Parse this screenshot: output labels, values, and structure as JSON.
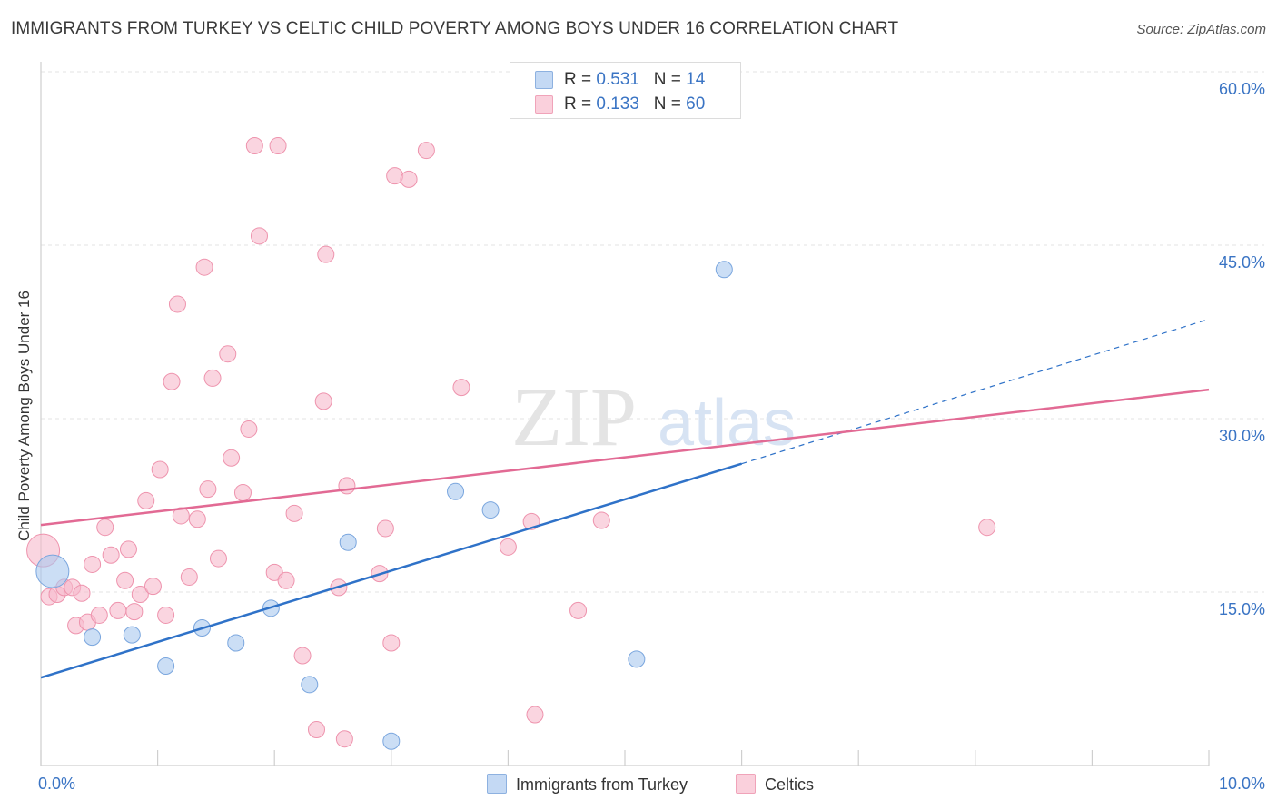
{
  "title": "IMMIGRANTS FROM TURKEY VS CELTIC CHILD POVERTY AMONG BOYS UNDER 16 CORRELATION CHART",
  "source": "Source: ZipAtlas.com",
  "watermark": {
    "zip": "ZIP",
    "atlas": "atlas"
  },
  "legend_top": [
    {
      "r_label": "R = ",
      "r_value": "0.531",
      "n_label": "N = ",
      "n_value": "14",
      "color": "#a9c8ef"
    },
    {
      "r_label": "R = ",
      "r_value": "0.133",
      "n_label": "N = ",
      "n_value": "60",
      "color": "#f6b9cb"
    }
  ],
  "chart_data": {
    "type": "scatter",
    "title": "IMMIGRANTS FROM TURKEY VS CELTIC CHILD POVERTY AMONG BOYS UNDER 16 CORRELATION CHART",
    "xlabel": "",
    "ylabel": "Child Poverty Among Boys Under 16",
    "xlim": [
      0,
      10
    ],
    "ylim": [
      0,
      60
    ],
    "x_tick_labels": [
      "0.0%",
      "10.0%"
    ],
    "y_tick_labels": [
      "15.0%",
      "30.0%",
      "45.0%",
      "60.0%"
    ],
    "y_ticks": [
      15,
      30,
      45,
      60
    ],
    "grid": true,
    "legend_position": "top-center",
    "series": [
      {
        "name": "Immigrants from Turkey",
        "color": "#a9c8ef",
        "stroke": "#7aa6de",
        "line_color": "#2f72c8",
        "trend": {
          "x0": 0,
          "y0": 7.6,
          "x1": 6.0,
          "y1": 26.1,
          "dash_to_x": 10.0,
          "dash_to_y": 38.6
        },
        "points": [
          [
            0.1,
            16.8
          ],
          [
            0.44,
            11.1
          ],
          [
            0.78,
            11.3
          ],
          [
            1.07,
            8.6
          ],
          [
            1.38,
            11.9
          ],
          [
            1.67,
            10.6
          ],
          [
            1.97,
            13.6
          ],
          [
            2.3,
            7.0
          ],
          [
            2.63,
            19.3
          ],
          [
            3.0,
            2.1
          ],
          [
            3.55,
            23.7
          ],
          [
            3.85,
            22.1
          ],
          [
            5.1,
            9.2
          ],
          [
            5.85,
            42.9
          ]
        ],
        "big_point_index": 0
      },
      {
        "name": "Celtics",
        "color": "#f6b9cb",
        "stroke": "#ee93ad",
        "line_color": "#e26a94",
        "trend": {
          "x0": 0,
          "y0": 20.8,
          "x1": 10.0,
          "y1": 32.5
        },
        "points": [
          [
            0.02,
            18.6
          ],
          [
            0.07,
            14.6
          ],
          [
            0.14,
            14.8
          ],
          [
            0.2,
            15.4
          ],
          [
            0.27,
            15.4
          ],
          [
            0.3,
            12.1
          ],
          [
            0.35,
            14.9
          ],
          [
            0.4,
            12.4
          ],
          [
            0.44,
            17.4
          ],
          [
            0.5,
            13.0
          ],
          [
            0.55,
            20.6
          ],
          [
            0.6,
            18.2
          ],
          [
            0.66,
            13.4
          ],
          [
            0.72,
            16.0
          ],
          [
            0.75,
            18.7
          ],
          [
            0.8,
            13.3
          ],
          [
            0.85,
            14.8
          ],
          [
            0.9,
            22.9
          ],
          [
            0.96,
            15.5
          ],
          [
            1.02,
            25.6
          ],
          [
            1.07,
            13.0
          ],
          [
            1.12,
            33.2
          ],
          [
            1.17,
            39.9
          ],
          [
            1.2,
            21.6
          ],
          [
            1.27,
            16.3
          ],
          [
            1.34,
            21.3
          ],
          [
            1.4,
            43.1
          ],
          [
            1.43,
            23.9
          ],
          [
            1.47,
            33.5
          ],
          [
            1.52,
            17.9
          ],
          [
            1.6,
            35.6
          ],
          [
            1.63,
            26.6
          ],
          [
            1.73,
            23.6
          ],
          [
            1.78,
            29.1
          ],
          [
            1.83,
            53.6
          ],
          [
            1.87,
            45.8
          ],
          [
            2.0,
            16.7
          ],
          [
            2.03,
            53.6
          ],
          [
            2.1,
            16.0
          ],
          [
            2.17,
            21.8
          ],
          [
            2.24,
            9.5
          ],
          [
            2.36,
            3.1
          ],
          [
            2.42,
            31.5
          ],
          [
            2.44,
            44.2
          ],
          [
            2.55,
            15.4
          ],
          [
            2.6,
            2.3
          ],
          [
            2.62,
            24.2
          ],
          [
            2.9,
            16.6
          ],
          [
            2.95,
            20.5
          ],
          [
            3.0,
            10.6
          ],
          [
            3.03,
            51.0
          ],
          [
            3.15,
            50.7
          ],
          [
            3.3,
            53.2
          ],
          [
            3.6,
            32.7
          ],
          [
            4.0,
            18.9
          ],
          [
            4.2,
            21.1
          ],
          [
            4.23,
            4.4
          ],
          [
            4.6,
            13.4
          ],
          [
            4.8,
            21.2
          ],
          [
            8.1,
            20.6
          ]
        ],
        "big_point_index": 0
      }
    ]
  }
}
